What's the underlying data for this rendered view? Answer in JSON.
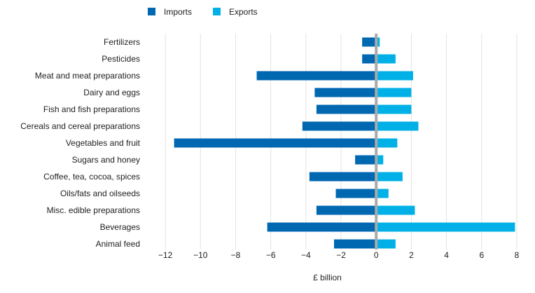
{
  "chart_data": {
    "type": "bar",
    "orientation": "horizontal",
    "title": "",
    "xlabel": "£ billion",
    "ylabel": "",
    "xlim": [
      -13,
      8
    ],
    "xticks": [
      -12,
      -10,
      -8,
      -6,
      -4,
      -2,
      0,
      2,
      4,
      6,
      8
    ],
    "grid": true,
    "legend_position": "top-left",
    "categories": [
      "Fertilizers",
      "Pesticides",
      "Meat and meat preparations",
      "Dairy and eggs",
      "Fish and fish preparations",
      "Cereals and cereal preparations",
      "Vegetables and fruit",
      "Sugars and honey",
      "Coffee, tea, cocoa, spices",
      "Oils/fats and oilseeds",
      "Misc. edible preparations",
      "Beverages",
      "Animal feed"
    ],
    "series": [
      {
        "name": "Imports",
        "color": "#0067b1",
        "values": [
          -0.8,
          -0.8,
          -6.8,
          -3.5,
          -3.4,
          -4.2,
          -11.5,
          -1.2,
          -3.8,
          -2.3,
          -3.4,
          -6.2,
          -2.4
        ]
      },
      {
        "name": "Exports",
        "color": "#00b0e6",
        "values": [
          0.2,
          1.1,
          2.1,
          2.0,
          2.0,
          2.4,
          1.2,
          0.4,
          1.5,
          0.7,
          2.2,
          7.9,
          1.1
        ]
      }
    ],
    "zero_line_color": "#aaaaaa",
    "grid_color": "#e3e3e3"
  }
}
